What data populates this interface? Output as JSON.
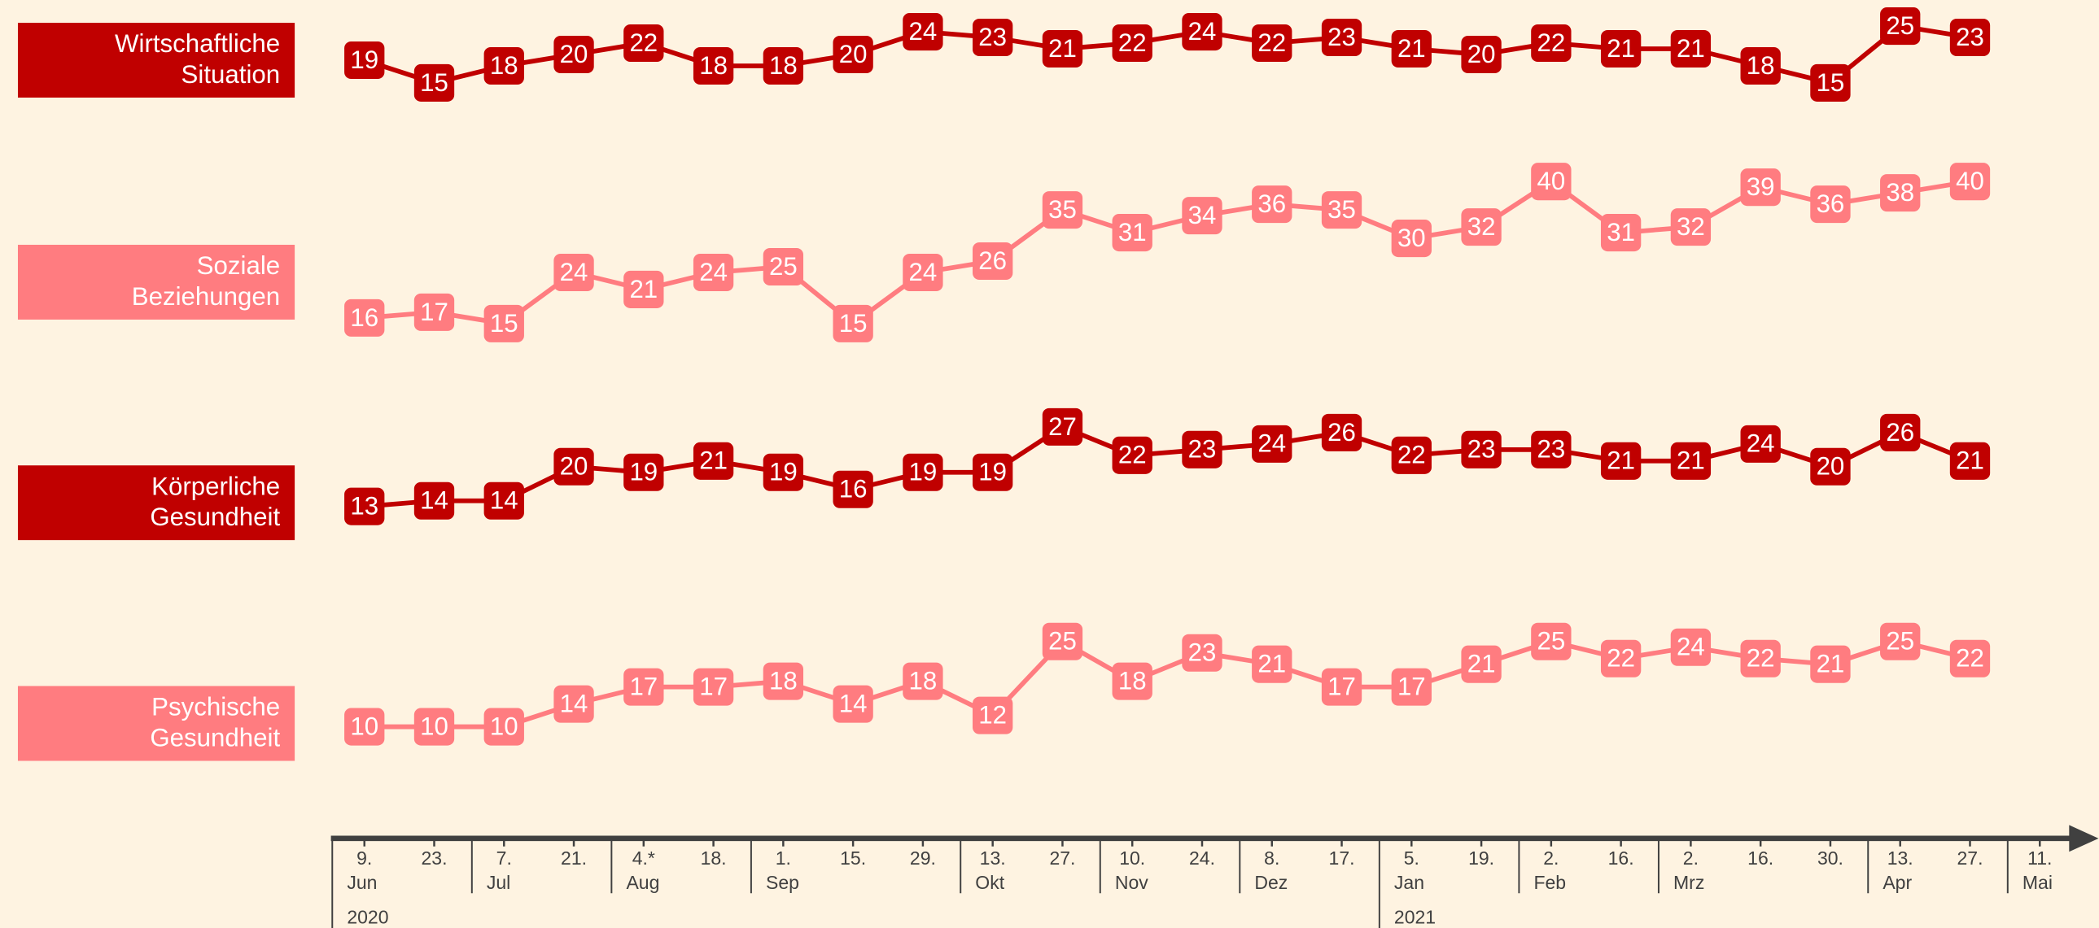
{
  "chart_data": {
    "type": "line",
    "categories": [
      "9.",
      "23.",
      "7.",
      "21.",
      "4.*",
      "18.",
      "1.",
      "15.",
      "29.",
      "13.",
      "27.",
      "10.",
      "24.",
      "8.",
      "17.",
      "5.",
      "19.",
      "2.",
      "16.",
      "2.",
      "16.",
      "30.",
      "13.",
      "27.",
      "11."
    ],
    "months": [
      "Jun",
      null,
      "Jul",
      null,
      "Aug",
      null,
      "Sep",
      null,
      null,
      "Okt",
      null,
      "Nov",
      null,
      "Dez",
      null,
      "Jan",
      null,
      "Feb",
      null,
      "Mrz",
      null,
      null,
      "Apr",
      null,
      "Mai"
    ],
    "years": [
      "2020",
      null,
      null,
      null,
      null,
      null,
      null,
      null,
      null,
      null,
      null,
      null,
      null,
      null,
      null,
      "2021",
      null,
      null,
      null,
      null,
      null,
      null,
      null,
      null,
      null
    ],
    "series": [
      {
        "name": "Wirtschaftliche Situation",
        "color": "#c00000",
        "values": [
          19,
          15,
          18,
          20,
          22,
          18,
          18,
          20,
          24,
          23,
          21,
          22,
          24,
          22,
          23,
          21,
          20,
          22,
          21,
          21,
          18,
          15,
          25,
          23,
          null
        ]
      },
      {
        "name": "Soziale Beziehungen",
        "color": "#ff7c80",
        "values": [
          16,
          17,
          15,
          24,
          21,
          24,
          25,
          15,
          24,
          26,
          35,
          31,
          34,
          36,
          35,
          30,
          32,
          40,
          31,
          32,
          39,
          36,
          38,
          40,
          null
        ]
      },
      {
        "name": "Körperliche Gesundheit",
        "color": "#c00000",
        "values": [
          13,
          14,
          14,
          20,
          19,
          21,
          19,
          16,
          19,
          19,
          27,
          22,
          23,
          24,
          26,
          22,
          23,
          23,
          21,
          21,
          24,
          20,
          26,
          21,
          null
        ]
      },
      {
        "name": "Psychische Gesundheit",
        "color": "#ff7c80",
        "values": [
          10,
          10,
          10,
          14,
          17,
          17,
          18,
          14,
          18,
          12,
          25,
          18,
          23,
          21,
          17,
          17,
          21,
          25,
          22,
          24,
          22,
          21,
          25,
          22,
          null
        ]
      }
    ]
  }
}
